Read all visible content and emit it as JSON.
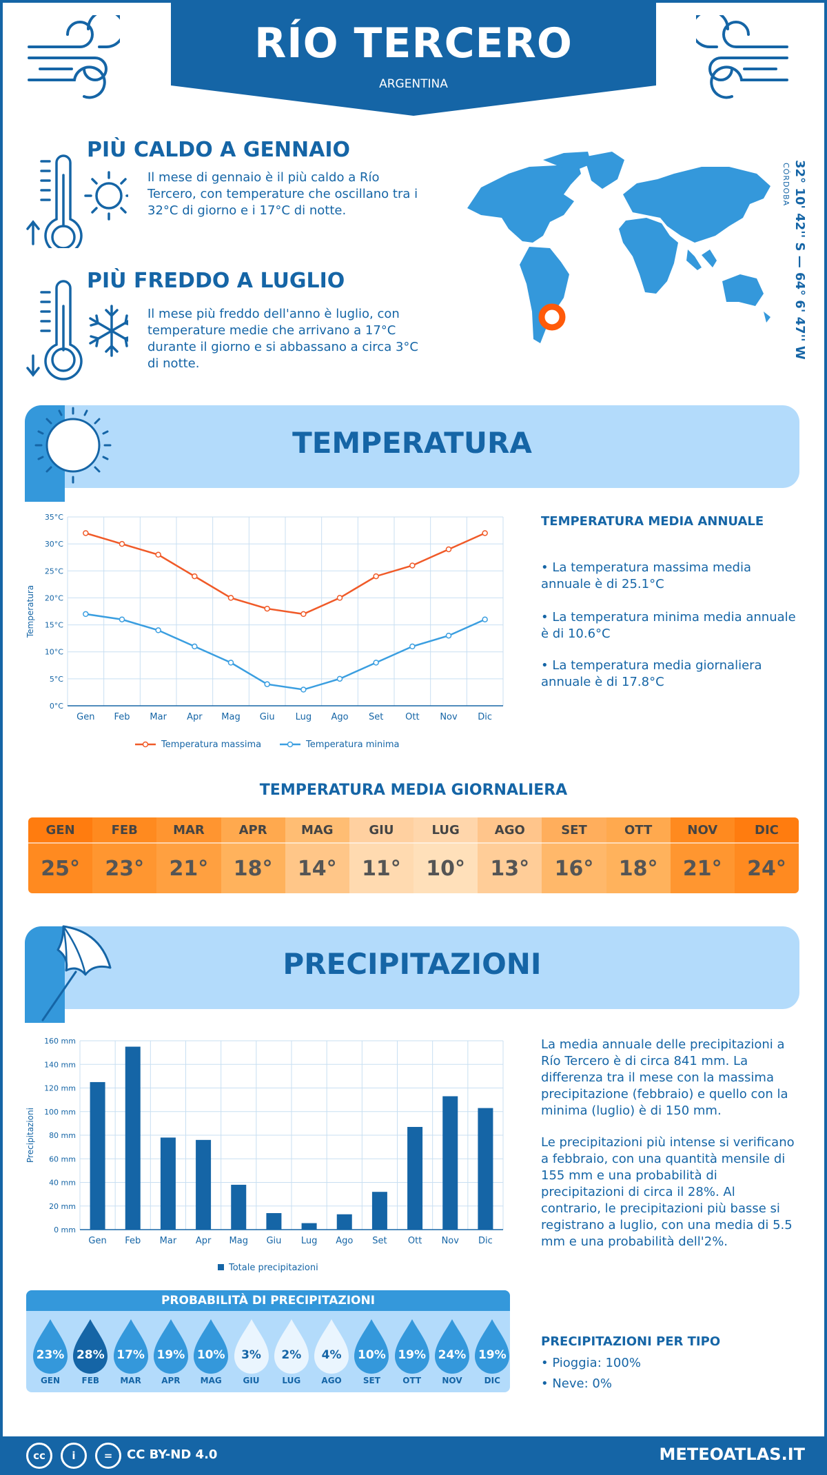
{
  "header": {
    "title": "RÍO TERCERO",
    "country": "ARGENTINA"
  },
  "hot": {
    "heading": "PIÙ CALDO A GENNAIO",
    "text": "Il mese di gennaio è il più caldo a Río Tercero, con temperature che oscillano tra i 32°C di giorno e i 17°C di notte."
  },
  "cold": {
    "heading": "PIÙ FREDDO A LUGLIO",
    "text": "Il mese più freddo dell'anno è luglio, con temperature medie che arrivano a 17°C durante il giorno e si abbassano a circa 3°C di notte."
  },
  "location": {
    "coords": "32° 10' 42'' S — 64° 6' 47'' W",
    "region": "CÓRDOBA"
  },
  "temperature": {
    "section_title": "TEMPERATURA",
    "annual_title": "TEMPERATURA MEDIA ANNUALE",
    "annual_points": [
      "• La temperatura massima media annuale è di 25.1°C",
      "• La temperatura minima media annuale è di 10.6°C",
      "• La temperatura media giornaliera annuale è di 17.8°C"
    ]
  },
  "daily": {
    "title": "TEMPERATURA MEDIA GIORNALIERA",
    "months": [
      "GEN",
      "FEB",
      "MAR",
      "APR",
      "MAG",
      "GIU",
      "LUG",
      "AGO",
      "SET",
      "OTT",
      "NOV",
      "DIC"
    ],
    "values": [
      "25°",
      "23°",
      "21°",
      "18°",
      "14°",
      "11°",
      "10°",
      "13°",
      "16°",
      "18°",
      "21°",
      "24°"
    ],
    "header_colors": [
      "#ff7c0f",
      "#ff8a1f",
      "#ff9530",
      "#ffa94e",
      "#ffbd73",
      "#ffd0a0",
      "#ffd6ab",
      "#ffc58b",
      "#ffae5c",
      "#ffa94e",
      "#ff8a1f",
      "#ff7c0f"
    ],
    "value_colors": [
      "#ff8a20",
      "#ff9630",
      "#ffa040",
      "#ffb25c",
      "#ffc688",
      "#ffdab0",
      "#ffe0ba",
      "#ffcd98",
      "#ffb86a",
      "#ffb25c",
      "#ff9630",
      "#ff8a20"
    ]
  },
  "precipitation": {
    "section_title": "PRECIPITAZIONI",
    "summary": "La media annuale delle precipitazioni a Río Tercero è di circa 841 mm. La differenza tra il mese con la massima precipitazione (febbraio) e quello con la minima (luglio) è di 150 mm.",
    "detail": "Le precipitazioni più intense si verificano a febbraio, con una quantità mensile di 155 mm e una probabilità di precipitazioni di circa il 28%. Al contrario, le precipitazioni più basse si registrano a luglio, con una media di 5.5 mm e una probabilità dell'2%.",
    "prob_title": "PROBABILITÀ DI PRECIPITAZIONI",
    "prob_values": [
      "23%",
      "28%",
      "17%",
      "19%",
      "10%",
      "3%",
      "2%",
      "4%",
      "10%",
      "19%",
      "24%",
      "19%"
    ],
    "prob_months": [
      "GEN",
      "FEB",
      "MAR",
      "APR",
      "MAG",
      "GIU",
      "LUG",
      "AGO",
      "SET",
      "OTT",
      "NOV",
      "DIC"
    ],
    "type_title": "PRECIPITAZIONI PER TIPO",
    "types": [
      "• Pioggia: 100%",
      "• Neve: 0%"
    ]
  },
  "chart_data": [
    {
      "type": "line",
      "x": [
        "Gen",
        "Feb",
        "Mar",
        "Apr",
        "Mag",
        "Giu",
        "Lug",
        "Ago",
        "Set",
        "Ott",
        "Nov",
        "Dic"
      ],
      "series": [
        {
          "name": "Temperatura massima",
          "values": [
            32,
            30,
            28,
            24,
            20,
            18,
            17,
            20,
            24,
            26,
            29,
            32
          ],
          "color": "#f05a28"
        },
        {
          "name": "Temperatura minima",
          "values": [
            17,
            16,
            14,
            11,
            8,
            4,
            3,
            5,
            8,
            11,
            13,
            16
          ],
          "color": "#3a9ee0"
        }
      ],
      "ylabel": "Temperatura",
      "ylim": [
        0,
        35
      ],
      "yticks": [
        "0°C",
        "5°C",
        "10°C",
        "15°C",
        "20°C",
        "25°C",
        "30°C",
        "35°C"
      ],
      "grid": true,
      "legend": "bottom"
    },
    {
      "type": "bar",
      "categories": [
        "Gen",
        "Feb",
        "Mar",
        "Apr",
        "Mag",
        "Giu",
        "Lug",
        "Ago",
        "Set",
        "Ott",
        "Nov",
        "Dic"
      ],
      "series": [
        {
          "name": "Totale precipitazioni",
          "values": [
            125,
            155,
            78,
            76,
            38,
            14,
            5.5,
            13,
            32,
            87,
            113,
            103
          ],
          "color": "#1565a6"
        }
      ],
      "ylabel": "Precipitazioni",
      "ylim": [
        0,
        160
      ],
      "yticks": [
        "0 mm",
        "20 mm",
        "40 mm",
        "60 mm",
        "80 mm",
        "100 mm",
        "120 mm",
        "140 mm",
        "160 mm"
      ],
      "grid": true,
      "legend": "bottom"
    }
  ],
  "footer": {
    "license": "CC BY-ND 4.0",
    "brand": "METEOATLAS.IT"
  }
}
